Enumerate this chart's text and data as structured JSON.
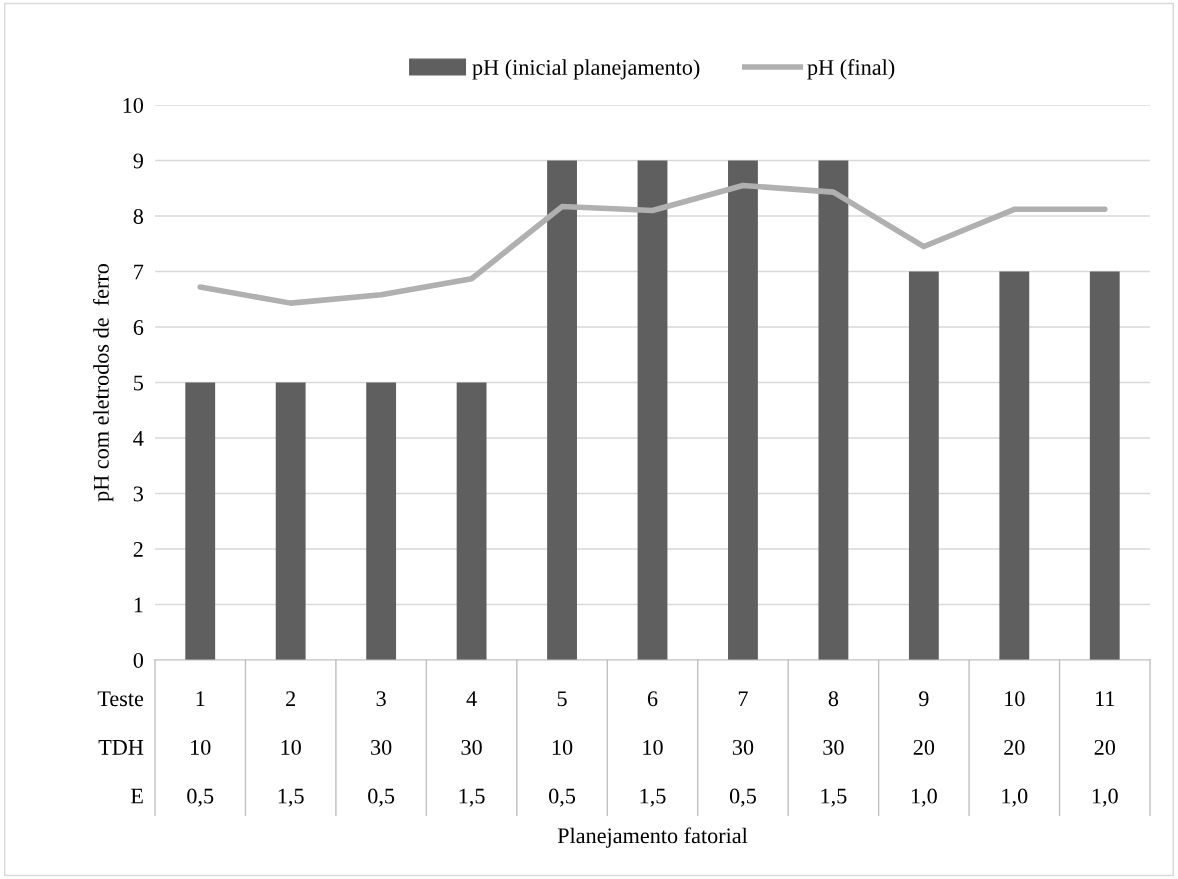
{
  "chart_data": {
    "type": "bar",
    "ylabel": "pH com eletrodos de  ferro",
    "categories": [
      "1\n10\n0,5",
      "2\n10\n1,5",
      "3\n30\n0,5",
      "4\n30\n1,5",
      "5\n10\n0,5",
      "6\n10\n1,5",
      "7\n30\n0,5",
      "8\n30\n1,5",
      "9\n20\n1,0",
      "10\n20\n1,0",
      "11\n20\n1,0"
    ],
    "series": [
      {
        "name": "pH (inicial planejamento)",
        "color": "#5f5f5f",
        "values": [
          5,
          5,
          5,
          5,
          9,
          9,
          9,
          9,
          7,
          7,
          7
        ]
      },
      {
        "name": "pH (final)",
        "type": "line",
        "color": "#b0b0b0",
        "values": [
          6.72,
          6.43,
          6.58,
          6.87,
          8.17,
          8.1,
          8.55,
          8.43,
          7.45,
          8.12,
          8.12
        ]
      }
    ],
    "annotations": [
      "Teste\nTDH\nE",
      "Planejamento fatorial"
    ],
    "ylim": [
      0,
      10
    ],
    "yticks": [
      0,
      1,
      2,
      3,
      4,
      5,
      6,
      7,
      8,
      9,
      10
    ],
    "grid": "y",
    "legend": "top",
    "marker": "none",
    "line_style": "solid"
  }
}
